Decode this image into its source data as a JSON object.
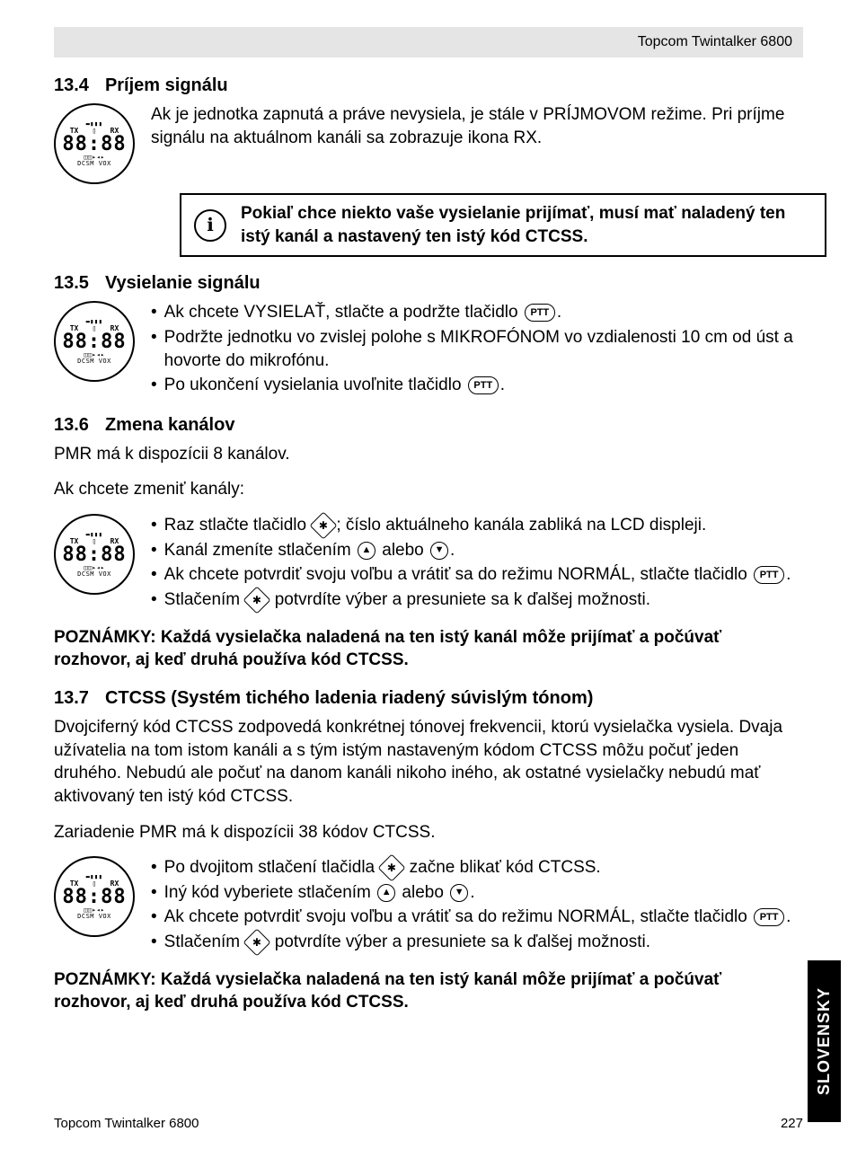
{
  "header": {
    "product": "Topcom Twintalker 6800"
  },
  "lcd": {
    "top_icons": "▬▮▮▮",
    "tx": "TX",
    "rx": "RX",
    "battery": "▯",
    "big_digits": "88:88",
    "mid_icons": "◫◫▸◂▸",
    "bottom": "DCSM VOX"
  },
  "section_13_4": {
    "num": "13.4",
    "title": "Príjem signálu",
    "body": "Ak je jednotka zapnutá a práve nevysiela, je stále v PRÍJMOVOM režime. Pri príjme signálu na aktuálnom kanáli sa zobrazuje ikona RX.",
    "callout": "Pokiaľ chce niekto vaše vysielanie prijímať, musí mať naladený ten istý kanál a nastavený ten istý kód CTCSS."
  },
  "section_13_5": {
    "num": "13.5",
    "title": "Vysielanie signálu",
    "item1_a": "Ak chcete VYSIELAŤ, stlačte a podržte tlačidlo ",
    "item1_b": ".",
    "item2": "Podržte jednotku vo zvislej polohe s MIKROFÓNOM vo vzdialenosti 10 cm od úst a hovorte do mikrofónu.",
    "item3_a": "Po ukončení vysielania uvoľnite tlačidlo ",
    "item3_b": "."
  },
  "section_13_6": {
    "num": "13.6",
    "title": "Zmena kanálov",
    "intro": "PMR má k dispozícii 8 kanálov.",
    "prompt": "Ak chcete zmeniť kanály:",
    "item1_a": "Raz stlačte tlačidlo ",
    "item1_b": "; číslo aktuálneho kanála zabliká na LCD displeji.",
    "item2_a": "Kanál zmeníte stlačením ",
    "item2_mid": " alebo ",
    "item2_b": ".",
    "item3_a": "Ak chcete potvrdiť svoju voľbu a vrátiť sa do režimu NORMÁL, stlačte tlačidlo ",
    "item3_b": ".",
    "item4_a": "Stlačením ",
    "item4_b": " potvrdíte výber a presuniete sa k ďalšej možnosti.",
    "note": "POZNÁMKY: Každá vysielačka naladená na ten istý kanál môže prijímať a počúvať rozhovor, aj keď druhá používa kód CTCSS."
  },
  "section_13_7": {
    "num": "13.7",
    "title": "CTCSS (Systém tichého ladenia riadený súvislým tónom)",
    "body": "Dvojciferný kód CTCSS zodpovedá konkrétnej tónovej frekvencii, ktorú vysielačka vysiela. Dvaja užívatelia na tom istom kanáli a s tým istým nastaveným kódom CTCSS môžu počuť jeden druhého. Nebudú ale počuť na danom kanáli nikoho iného, ak ostatné vysielačky nebudú mať aktivovaný ten istý kód CTCSS.",
    "body2": "Zariadenie PMR má k dispozícii 38 kódov CTCSS.",
    "item1_a": "Po dvojitom stlačení tlačidla ",
    "item1_b": " začne blikať kód CTCSS.",
    "item2_a": "Iný kód vyberiete stlačením ",
    "item2_mid": " alebo ",
    "item2_b": ".",
    "item3_a": "Ak chcete potvrdiť svoju voľbu a vrátiť sa do režimu NORMÁL, stlačte tlačidlo ",
    "item3_b": ".",
    "item4_a": "Stlačením ",
    "item4_b": " potvrdíte výber a presuniete sa k ďalšej možnosti.",
    "note": "POZNÁMKY: Každá vysielačka naladená na ten istý kanál môže prijímať a počúvať rozhovor, aj keď druhá používa kód CTCSS."
  },
  "buttons": {
    "ptt": "PTT",
    "menu": "✱",
    "up": "▲",
    "down": "▼"
  },
  "footer": {
    "left": "Topcom Twintalker 6800",
    "page": "227"
  },
  "side_tab": "SLOVENSKY",
  "icons": {
    "info": "ℹ"
  }
}
